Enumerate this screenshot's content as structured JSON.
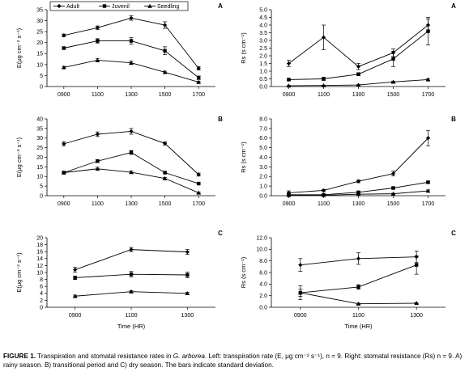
{
  "caption": {
    "label": "FIGURE 1.",
    "part1": " Transpiration and stomatal resistance rates in ",
    "species": "G. arborea",
    "part2": ". Left: transpiration rate (E, μg cm⁻² s⁻¹), n = 9. Right: stomatal resistance (Rs) n = 9. A) rainy season. B) transitional period and C) dry season. The bars indicate standard deviation."
  },
  "legend": {
    "placement": "top",
    "entries": [
      "Adult",
      "Juvenil",
      "Seedling"
    ]
  },
  "colors": {
    "ink": "#000000",
    "background": "#ffffff"
  },
  "chart_data": [
    {
      "id": "A-left",
      "panel_label": "A",
      "type": "line",
      "ylabel": "E(μg cm⁻² s⁻¹)",
      "xlabel": "",
      "categories": [
        "0900",
        "1100",
        "1300",
        "1500",
        "1700"
      ],
      "ylim": [
        0,
        35
      ],
      "yticks": [
        "0",
        "5",
        "10",
        "15",
        "20",
        "25",
        "30",
        "35"
      ],
      "grid": false,
      "series": [
        {
          "name": "Adult",
          "marker": "diamond",
          "values": [
            23.3,
            26.8,
            31.2,
            28.0,
            8.3
          ],
          "err": [
            0.6,
            0.8,
            1.0,
            1.5,
            0.8
          ]
        },
        {
          "name": "Juvenil",
          "marker": "square",
          "values": [
            17.5,
            20.8,
            20.8,
            16.3,
            4.0
          ],
          "err": [
            0.6,
            1.0,
            1.5,
            1.8,
            0.8
          ]
        },
        {
          "name": "Seedling",
          "marker": "triangle",
          "values": [
            8.7,
            12.0,
            10.8,
            6.5,
            2.0
          ],
          "err": [
            0.5,
            0.8,
            0.8,
            0.5,
            0.4
          ]
        }
      ]
    },
    {
      "id": "A-right",
      "panel_label": "A",
      "type": "line",
      "ylabel": "Rs (s cm⁻¹)",
      "xlabel": "",
      "categories": [
        "0900",
        "1100",
        "1300",
        "1500",
        "1700"
      ],
      "ylim": [
        0,
        5
      ],
      "yticks": [
        "0.0",
        "0.5",
        "1.0",
        "1.5",
        "2.0",
        "2.5",
        "3.0",
        "3.5",
        "4.0",
        "4.5",
        "5.0"
      ],
      "grid": false,
      "series": [
        {
          "name": "Adult",
          "marker": "diamond",
          "values": [
            1.5,
            3.2,
            1.3,
            2.2,
            4.0
          ],
          "err": [
            0.2,
            0.8,
            0.2,
            0.25,
            0.4
          ]
        },
        {
          "name": "Juvenil",
          "marker": "square",
          "values": [
            0.45,
            0.5,
            0.8,
            1.8,
            3.6
          ],
          "err": [
            0.05,
            0.1,
            0.1,
            0.5,
            0.9
          ]
        },
        {
          "name": "Seedling",
          "marker": "triangle",
          "values": [
            0.05,
            0.07,
            0.1,
            0.3,
            0.45
          ],
          "err": [
            0.02,
            0.02,
            0.03,
            0.04,
            0.06
          ]
        }
      ]
    },
    {
      "id": "B-left",
      "panel_label": "B",
      "type": "line",
      "ylabel": "E(μg cm⁻² s⁻¹)",
      "xlabel": "",
      "categories": [
        "0900",
        "1100",
        "1300",
        "1500",
        "1700"
      ],
      "ylim": [
        0,
        40
      ],
      "yticks": [
        "0",
        "5",
        "10",
        "15",
        "20",
        "25",
        "30",
        "35",
        "40"
      ],
      "grid": false,
      "series": [
        {
          "name": "Adult",
          "marker": "diamond",
          "values": [
            27.0,
            32.0,
            33.5,
            27.2,
            11.0
          ],
          "err": [
            1.0,
            1.2,
            1.5,
            0.8,
            0.8
          ]
        },
        {
          "name": "Juvenil",
          "marker": "square",
          "values": [
            12.0,
            18.0,
            22.5,
            12.0,
            6.3
          ],
          "err": [
            0.6,
            0.8,
            1.0,
            0.6,
            0.4
          ]
        },
        {
          "name": "Seedling",
          "marker": "triangle",
          "values": [
            12.0,
            14.0,
            12.2,
            9.0,
            1.5
          ],
          "err": [
            0.5,
            0.8,
            0.6,
            0.5,
            0.3
          ]
        }
      ]
    },
    {
      "id": "B-right",
      "panel_label": "B",
      "type": "line",
      "ylabel": "Rs (s cm⁻¹)",
      "xlabel": "",
      "categories": [
        "0900",
        "1100",
        "1300",
        "1500",
        "1700"
      ],
      "ylim": [
        0,
        8
      ],
      "yticks": [
        "0.0",
        "1.0",
        "2.0",
        "3.0",
        "4.0",
        "5.0",
        "6.0",
        "7.0",
        "8.0"
      ],
      "grid": false,
      "series": [
        {
          "name": "Adult",
          "marker": "diamond",
          "values": [
            0.3,
            0.55,
            1.5,
            2.3,
            6.0
          ],
          "err": [
            0.2,
            0.1,
            0.15,
            0.25,
            0.8
          ]
        },
        {
          "name": "Juvenil",
          "marker": "square",
          "values": [
            0.1,
            0.1,
            0.35,
            0.8,
            1.4
          ],
          "err": [
            0.1,
            0.05,
            0.1,
            0.1,
            0.1
          ]
        },
        {
          "name": "Seedling",
          "marker": "triangle",
          "values": [
            0.05,
            0.05,
            0.15,
            0.2,
            0.5
          ],
          "err": [
            0.05,
            0.03,
            0.05,
            0.05,
            0.1
          ]
        }
      ]
    },
    {
      "id": "C-left",
      "panel_label": "C",
      "type": "line",
      "ylabel": "E(μg cm⁻² s⁻¹)",
      "xlabel": "Time (HR)",
      "categories": [
        "0900",
        "1100",
        "1300"
      ],
      "ylim": [
        0,
        20
      ],
      "yticks": [
        "0",
        "2",
        "4",
        "6",
        "8",
        "10",
        "12",
        "14",
        "16",
        "18",
        "20"
      ],
      "grid": false,
      "series": [
        {
          "name": "Adult",
          "marker": "diamond",
          "values": [
            10.8,
            16.6,
            15.9
          ],
          "err": [
            0.7,
            0.6,
            0.7
          ]
        },
        {
          "name": "Juvenil",
          "marker": "square",
          "values": [
            8.5,
            9.5,
            9.3
          ],
          "err": [
            0.5,
            0.8,
            0.8
          ]
        },
        {
          "name": "Seedling",
          "marker": "triangle",
          "values": [
            3.2,
            4.5,
            4.0
          ],
          "err": [
            0.3,
            0.3,
            0.3
          ]
        }
      ]
    },
    {
      "id": "C-right",
      "panel_label": "C",
      "type": "line",
      "ylabel": "Rs (s cm⁻¹)",
      "xlabel": "Time (HR)",
      "categories": [
        "0900",
        "1100",
        "1300"
      ],
      "ylim": [
        0,
        12
      ],
      "yticks": [
        "0.0",
        "2.0",
        "4.0",
        "6.0",
        "8.0",
        "10.0",
        "12.0"
      ],
      "grid": false,
      "series": [
        {
          "name": "Adult",
          "marker": "diamond",
          "values": [
            7.3,
            8.4,
            8.7
          ],
          "err": [
            1.1,
            1.0,
            1.0
          ]
        },
        {
          "name": "Juvenil",
          "marker": "square",
          "values": [
            2.5,
            3.5,
            7.3
          ],
          "err": [
            1.2,
            0.4,
            1.6
          ]
        },
        {
          "name": "Seedling",
          "marker": "triangle",
          "values": [
            2.5,
            0.6,
            0.7
          ],
          "err": [
            0.6,
            0.1,
            0.1
          ]
        }
      ]
    }
  ]
}
